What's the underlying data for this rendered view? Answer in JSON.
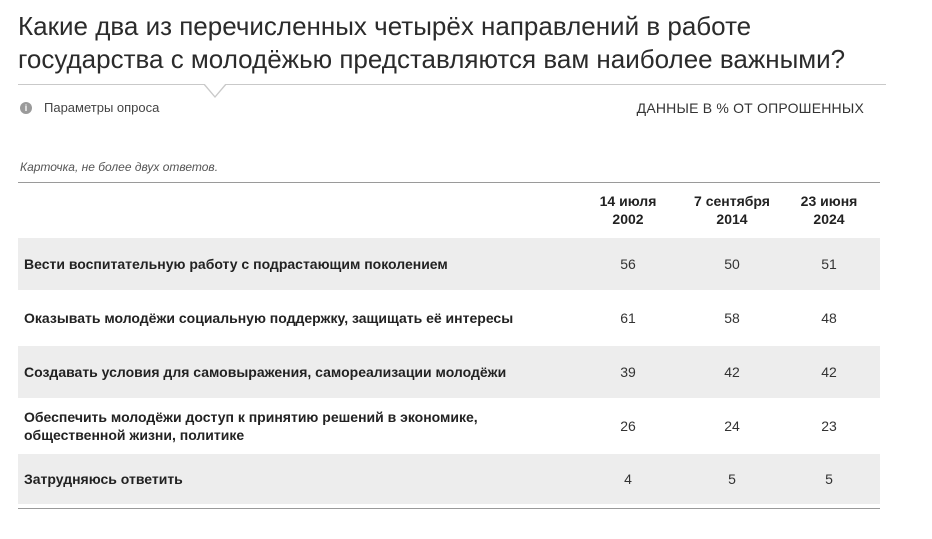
{
  "title": "Какие два из перечисленных четырёх направлений в работе государства с молодёжью представляются вам наиболее важными?",
  "params": {
    "icon": "info-icon",
    "icon_glyph": "i",
    "label": "Параметры опроса"
  },
  "data_note": "ДАННЫЕ В % ОТ ОПРОШЕННЫХ",
  "card_note": "Карточка, не более двух ответов.",
  "table": {
    "columns": [
      {
        "line1": "14 июля",
        "line2": "2002"
      },
      {
        "line1": "7 сентября",
        "line2": "2014"
      },
      {
        "line1": "23 июня",
        "line2": "2024"
      }
    ],
    "rows": [
      {
        "label": "Вести воспитательную работу с подрастающим поколением",
        "values": [
          "56",
          "50",
          "51"
        ]
      },
      {
        "label": "Оказывать молодёжи социальную поддержку, защищать её интересы",
        "values": [
          "61",
          "58",
          "48"
        ]
      },
      {
        "label": "Создавать условия для самовыражения, самореализации молодёжи",
        "values": [
          "39",
          "42",
          "42"
        ]
      },
      {
        "label": "Обеспечить молодёжи доступ к принятию решений в экономике, общественной жизни, политике",
        "values": [
          "26",
          "24",
          "23"
        ]
      },
      {
        "label": "Затрудняюсь ответить",
        "values": [
          "4",
          "5",
          "5"
        ]
      }
    ]
  },
  "colors": {
    "row_shade": "#ededed",
    "rule": "#9a9a9a",
    "text": "#222222"
  }
}
